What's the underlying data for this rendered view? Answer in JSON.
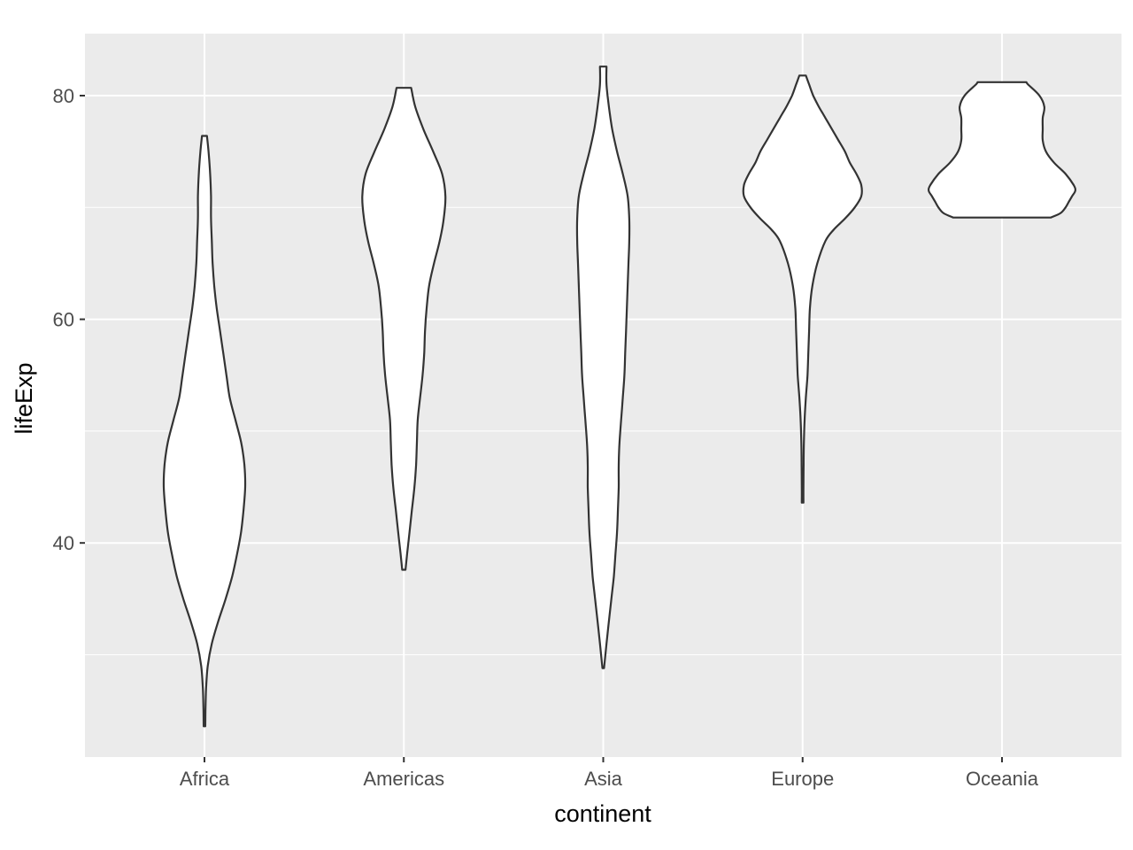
{
  "chart_data": {
    "type": "violin",
    "title": "",
    "xlabel": "continent",
    "ylabel": "lifeExp",
    "categories": [
      "Africa",
      "Americas",
      "Asia",
      "Europe",
      "Oceania"
    ],
    "ylim": [
      21.7,
      86.5
    ],
    "yticks": [
      40,
      60,
      80
    ],
    "yticks_minor": [
      30,
      50,
      70
    ],
    "grid": true,
    "legend": "none",
    "colors": {
      "panel_background": "#ebebeb",
      "grid": "#ffffff",
      "violin_fill": "#ffffff",
      "violin_stroke": "#333333"
    },
    "violins": [
      {
        "category": "Africa",
        "min": 23.6,
        "max": 76.4,
        "profile": [
          [
            23.6,
            0.005
          ],
          [
            25,
            0.006
          ],
          [
            27,
            0.01
          ],
          [
            29,
            0.02
          ],
          [
            31,
            0.045
          ],
          [
            33,
            0.085
          ],
          [
            35,
            0.13
          ],
          [
            37,
            0.17
          ],
          [
            39,
            0.2
          ],
          [
            41,
            0.225
          ],
          [
            43,
            0.24
          ],
          [
            45,
            0.25
          ],
          [
            47,
            0.245
          ],
          [
            49,
            0.225
          ],
          [
            51,
            0.19
          ],
          [
            53,
            0.155
          ],
          [
            55,
            0.135
          ],
          [
            57,
            0.115
          ],
          [
            59,
            0.095
          ],
          [
            61,
            0.075
          ],
          [
            63,
            0.06
          ],
          [
            65,
            0.05
          ],
          [
            67,
            0.045
          ],
          [
            69,
            0.04
          ],
          [
            71,
            0.04
          ],
          [
            73,
            0.035
          ],
          [
            75,
            0.025
          ],
          [
            76.4,
            0.015
          ]
        ]
      },
      {
        "category": "Americas",
        "min": 37.6,
        "max": 80.7,
        "profile": [
          [
            37.6,
            0.01
          ],
          [
            39,
            0.02
          ],
          [
            41,
            0.035
          ],
          [
            43,
            0.05
          ],
          [
            45,
            0.065
          ],
          [
            47,
            0.075
          ],
          [
            49,
            0.08
          ],
          [
            51,
            0.085
          ],
          [
            53,
            0.1
          ],
          [
            55,
            0.115
          ],
          [
            57,
            0.125
          ],
          [
            59,
            0.13
          ],
          [
            61,
            0.14
          ],
          [
            63,
            0.155
          ],
          [
            65,
            0.185
          ],
          [
            67,
            0.22
          ],
          [
            69,
            0.245
          ],
          [
            71,
            0.255
          ],
          [
            73,
            0.235
          ],
          [
            75,
            0.18
          ],
          [
            77,
            0.12
          ],
          [
            79,
            0.07
          ],
          [
            80.7,
            0.045
          ]
        ]
      },
      {
        "category": "Asia",
        "min": 28.8,
        "max": 82.6,
        "profile": [
          [
            28.8,
            0.005
          ],
          [
            31,
            0.02
          ],
          [
            33,
            0.035
          ],
          [
            35,
            0.05
          ],
          [
            37,
            0.065
          ],
          [
            39,
            0.075
          ],
          [
            41,
            0.085
          ],
          [
            43,
            0.09
          ],
          [
            45,
            0.095
          ],
          [
            47,
            0.095
          ],
          [
            49,
            0.1
          ],
          [
            51,
            0.11
          ],
          [
            53,
            0.12
          ],
          [
            55,
            0.13
          ],
          [
            57,
            0.135
          ],
          [
            59,
            0.14
          ],
          [
            61,
            0.145
          ],
          [
            63,
            0.15
          ],
          [
            65,
            0.155
          ],
          [
            67,
            0.16
          ],
          [
            69,
            0.16
          ],
          [
            71,
            0.15
          ],
          [
            73,
            0.12
          ],
          [
            75,
            0.085
          ],
          [
            77,
            0.055
          ],
          [
            79,
            0.035
          ],
          [
            81,
            0.02
          ],
          [
            82.6,
            0.02
          ]
        ]
      },
      {
        "category": "Europe",
        "min": 43.6,
        "max": 81.8,
        "profile": [
          [
            43.6,
            0.005
          ],
          [
            45,
            0.005
          ],
          [
            47,
            0.006
          ],
          [
            49,
            0.008
          ],
          [
            51,
            0.012
          ],
          [
            53,
            0.02
          ],
          [
            55,
            0.03
          ],
          [
            57,
            0.035
          ],
          [
            59,
            0.04
          ],
          [
            61,
            0.045
          ],
          [
            63,
            0.06
          ],
          [
            65,
            0.09
          ],
          [
            67,
            0.14
          ],
          [
            68,
            0.19
          ],
          [
            69,
            0.26
          ],
          [
            70,
            0.32
          ],
          [
            71,
            0.36
          ],
          [
            72,
            0.36
          ],
          [
            73,
            0.33
          ],
          [
            74,
            0.29
          ],
          [
            75,
            0.26
          ],
          [
            76,
            0.22
          ],
          [
            77,
            0.18
          ],
          [
            78,
            0.14
          ],
          [
            79,
            0.1
          ],
          [
            80,
            0.065
          ],
          [
            81,
            0.04
          ],
          [
            81.8,
            0.02
          ]
        ]
      },
      {
        "category": "Oceania",
        "min": 69.1,
        "max": 81.2,
        "profile": [
          [
            69.1,
            0.3
          ],
          [
            69.5,
            0.36
          ],
          [
            70,
            0.39
          ],
          [
            70.5,
            0.41
          ],
          [
            71,
            0.43
          ],
          [
            71.5,
            0.45
          ],
          [
            72,
            0.44
          ],
          [
            73,
            0.39
          ],
          [
            74,
            0.32
          ],
          [
            75,
            0.27
          ],
          [
            76,
            0.25
          ],
          [
            77,
            0.25
          ],
          [
            78,
            0.25
          ],
          [
            79,
            0.26
          ],
          [
            80,
            0.23
          ],
          [
            81,
            0.16
          ],
          [
            81.2,
            0.15
          ]
        ]
      }
    ]
  }
}
